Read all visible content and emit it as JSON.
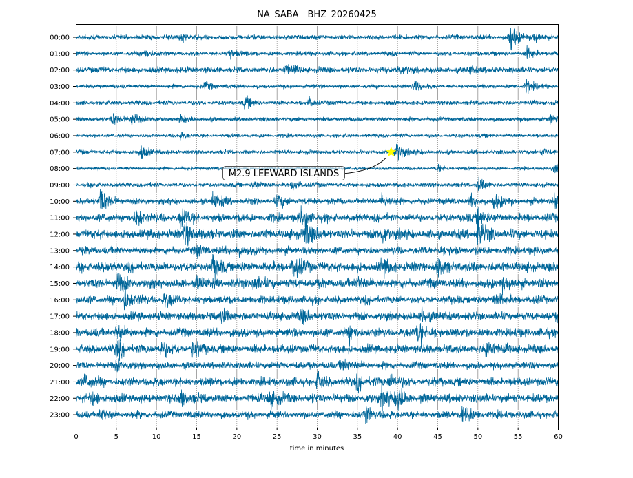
{
  "chart_data": {
    "type": "line",
    "title": "NA_SABA__BHZ_20260425",
    "xlabel": "time in minutes",
    "ylabel": "",
    "xlim": [
      0,
      60
    ],
    "x_ticks": [
      "0",
      "5",
      "10",
      "15",
      "20",
      "25",
      "30",
      "35",
      "40",
      "45",
      "50",
      "55",
      "60"
    ],
    "grid": "vertical dotted every 5 minutes",
    "trace_color": "#006699",
    "rows": [
      {
        "label": "00:00",
        "base": 2.6,
        "bursts": [
          [
            13,
            6
          ],
          [
            54,
            18
          ],
          [
            57,
            5
          ]
        ]
      },
      {
        "label": "01:00",
        "base": 2.4,
        "bursts": [
          [
            8.5,
            6
          ],
          [
            19,
            7
          ],
          [
            56,
            8
          ]
        ]
      },
      {
        "label": "02:00",
        "base": 3.2,
        "bursts": [
          [
            26,
            7
          ],
          [
            40,
            5
          ],
          [
            49,
            4
          ]
        ]
      },
      {
        "label": "03:00",
        "base": 2.2,
        "bursts": [
          [
            16,
            5
          ],
          [
            42,
            8
          ],
          [
            56,
            8
          ]
        ]
      },
      {
        "label": "04:00",
        "base": 2.4,
        "bursts": [
          [
            21,
            7
          ],
          [
            29,
            5
          ]
        ]
      },
      {
        "label": "05:00",
        "base": 2.2,
        "bursts": [
          [
            4.5,
            9
          ],
          [
            7,
            9
          ],
          [
            13,
            4
          ],
          [
            59,
            4
          ]
        ]
      },
      {
        "label": "06:00",
        "base": 2.0,
        "bursts": [
          [
            13,
            4
          ]
        ]
      },
      {
        "label": "07:00",
        "base": 2.2,
        "bursts": [
          [
            8,
            10
          ],
          [
            39.8,
            14
          ],
          [
            58,
            5
          ]
        ]
      },
      {
        "label": "08:00",
        "base": 1.8,
        "bursts": [
          [
            45,
            5
          ],
          [
            59.5,
            6
          ]
        ]
      },
      {
        "label": "09:00",
        "base": 2.4,
        "bursts": [
          [
            22,
            6
          ],
          [
            27,
            6
          ],
          [
            50,
            8
          ]
        ]
      },
      {
        "label": "10:00",
        "base": 3.4,
        "bursts": [
          [
            3,
            18
          ],
          [
            17,
            12
          ],
          [
            25,
            8
          ],
          [
            38,
            8
          ],
          [
            49,
            7
          ],
          [
            52,
            10
          ],
          [
            59.5,
            10
          ]
        ]
      },
      {
        "label": "11:00",
        "base": 4.4,
        "bursts": [
          [
            7.5,
            12
          ],
          [
            13,
            12
          ],
          [
            28,
            10
          ],
          [
            50,
            12
          ]
        ]
      },
      {
        "label": "12:00",
        "base": 5.0,
        "bursts": [
          [
            13.5,
            14
          ],
          [
            28.5,
            18
          ],
          [
            38,
            10
          ],
          [
            50,
            16
          ]
        ]
      },
      {
        "label": "13:00",
        "base": 4.2,
        "bursts": [
          [
            15,
            6
          ],
          [
            20,
            6
          ],
          [
            45,
            5
          ]
        ]
      },
      {
        "label": "14:00",
        "base": 5.2,
        "bursts": [
          [
            17,
            12
          ],
          [
            27,
            14
          ],
          [
            38,
            9
          ],
          [
            45,
            9
          ]
        ]
      },
      {
        "label": "15:00",
        "base": 5.0,
        "bursts": [
          [
            5,
            12
          ],
          [
            15,
            8
          ],
          [
            22,
            8
          ],
          [
            35,
            8
          ],
          [
            53,
            8
          ]
        ]
      },
      {
        "label": "16:00",
        "base": 4.4,
        "bursts": [
          [
            6,
            16
          ],
          [
            11,
            8
          ],
          [
            52,
            8
          ]
        ]
      },
      {
        "label": "17:00",
        "base": 4.4,
        "bursts": [
          [
            18,
            8
          ],
          [
            28,
            8
          ],
          [
            43,
            10
          ],
          [
            60,
            9
          ]
        ]
      },
      {
        "label": "18:00",
        "base": 4.8,
        "bursts": [
          [
            5,
            9
          ],
          [
            34,
            8
          ],
          [
            42.5,
            16
          ]
        ]
      },
      {
        "label": "19:00",
        "base": 4.6,
        "bursts": [
          [
            5,
            10
          ],
          [
            10.5,
            12
          ],
          [
            14.5,
            10
          ],
          [
            51,
            13
          ]
        ]
      },
      {
        "label": "20:00",
        "base": 4.0,
        "bursts": [
          [
            5,
            6
          ],
          [
            33,
            10
          ]
        ]
      },
      {
        "label": "21:00",
        "base": 4.6,
        "bursts": [
          [
            1,
            8
          ],
          [
            30,
            10
          ],
          [
            35,
            8
          ],
          [
            39,
            10
          ],
          [
            60,
            9
          ]
        ]
      },
      {
        "label": "22:00",
        "base": 4.8,
        "bursts": [
          [
            2,
            8
          ],
          [
            13,
            8
          ],
          [
            24,
            10
          ],
          [
            38,
            14
          ],
          [
            40,
            12
          ]
        ]
      },
      {
        "label": "23:00",
        "base": 4.0,
        "bursts": [
          [
            3,
            6
          ],
          [
            36,
            10
          ],
          [
            48,
            12
          ]
        ]
      }
    ],
    "annotations": [
      {
        "text": "M2.9 LEEWARD ISLANDS",
        "row": "07:00",
        "minute": 39.2,
        "marker": "star",
        "marker_color": "#ffff00"
      }
    ]
  }
}
